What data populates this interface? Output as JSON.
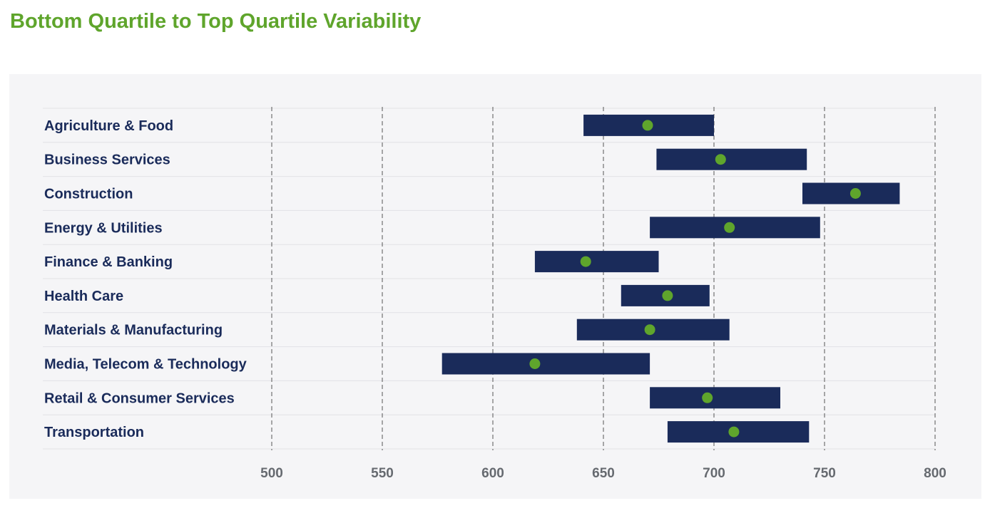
{
  "title": "Bottom Quartile to Top Quartile Variability",
  "colors": {
    "title": "#5fa52c",
    "bar": "#1a2b5a",
    "dot": "#5fa52c",
    "grid": "#555555",
    "row_line": "#e2e2e6",
    "tick": "#666a70"
  },
  "chart_data": {
    "type": "range-dot",
    "title": "Bottom Quartile to Top Quartile Variability",
    "xlim": [
      500,
      800
    ],
    "xticks": [
      500,
      550,
      600,
      650,
      700,
      750,
      800
    ],
    "tick_labels": [
      "500",
      "550",
      "600",
      "650",
      "700",
      "750",
      "800"
    ],
    "grid": "vertical-dashed",
    "categories": [
      "Agriculture & Food",
      "Business Services",
      "Construction",
      "Energy & Utilities",
      "Finance & Banking",
      "Health Care",
      "Materials & Manufacturing",
      "Media, Telecom & Technology",
      "Retail & Consumer Services",
      "Transportation"
    ],
    "low": [
      641,
      674,
      740,
      671,
      619,
      658,
      638,
      577,
      671,
      679
    ],
    "high": [
      700,
      742,
      784,
      748,
      675,
      698,
      707,
      671,
      730,
      743
    ],
    "median": [
      670,
      703,
      764,
      707,
      642,
      679,
      671,
      619,
      697,
      709
    ]
  }
}
